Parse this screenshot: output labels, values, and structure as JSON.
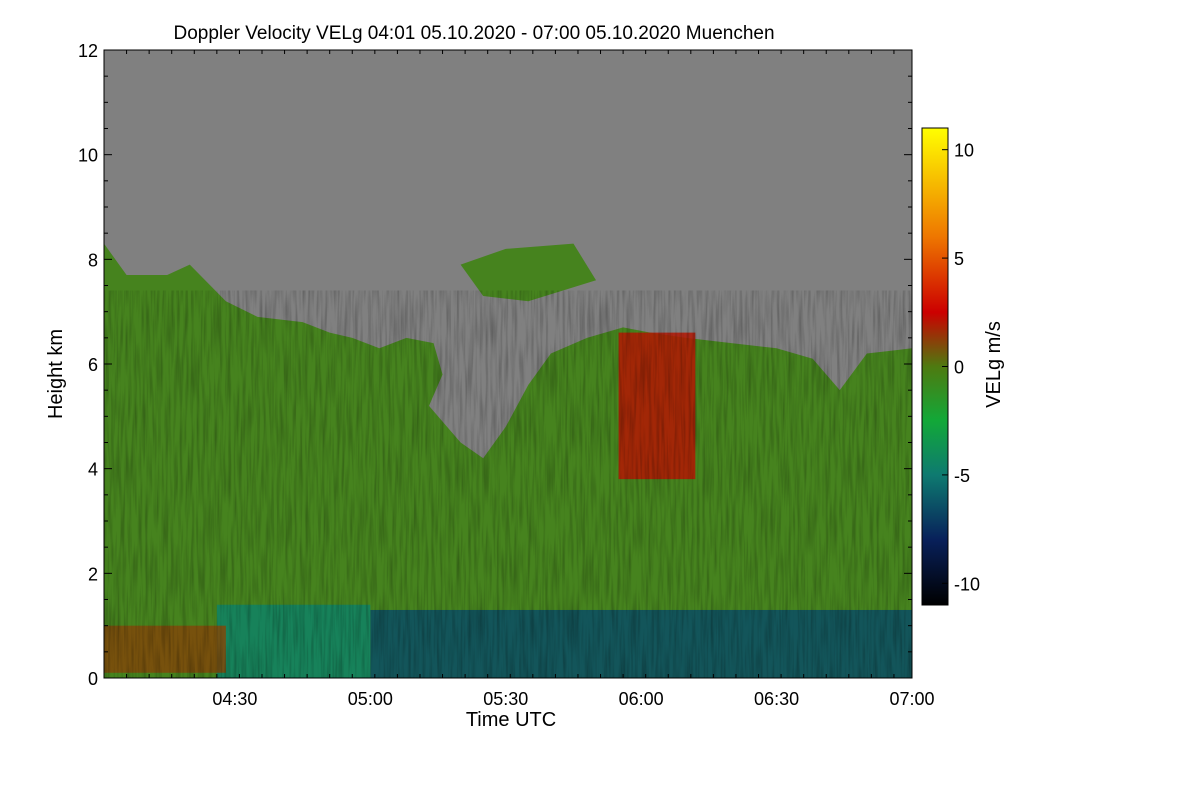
{
  "chart_data": {
    "type": "heatmap",
    "title": "Doppler Velocity VELg   04:01 05.10.2020 - 07:00 05.10.2020 Muenchen",
    "xlabel": "Time UTC",
    "ylabel": "Height km",
    "x_start_label": "04:01",
    "x_end_label": "07:00",
    "xlim_minutes_utc": [
      241,
      420
    ],
    "ylim_km": [
      0,
      12
    ],
    "x_ticks": [
      {
        "minutes": 270,
        "label": "04:30"
      },
      {
        "minutes": 300,
        "label": "05:00"
      },
      {
        "minutes": 330,
        "label": "05:30"
      },
      {
        "minutes": 360,
        "label": "06:00"
      },
      {
        "minutes": 390,
        "label": "06:30"
      },
      {
        "minutes": 420,
        "label": "07:00"
      }
    ],
    "y_ticks": [
      {
        "km": 0,
        "label": "0"
      },
      {
        "km": 2,
        "label": "2"
      },
      {
        "km": 4,
        "label": "4"
      },
      {
        "km": 6,
        "label": "6"
      },
      {
        "km": 8,
        "label": "8"
      },
      {
        "km": 10,
        "label": "10"
      },
      {
        "km": 12,
        "label": "12"
      }
    ],
    "colorbar": {
      "label": "VELg m/s",
      "range": [
        -11,
        11
      ],
      "ticks": [
        {
          "value": 10,
          "label": "10"
        },
        {
          "value": 5,
          "label": "5"
        },
        {
          "value": 0,
          "label": "0"
        },
        {
          "value": -5,
          "label": "-5"
        },
        {
          "value": -10,
          "label": "-10"
        }
      ],
      "stops": [
        {
          "value": -11,
          "color": "#000000"
        },
        {
          "value": -8,
          "color": "#08205a"
        },
        {
          "value": -5,
          "color": "#0e7a70"
        },
        {
          "value": -2.5,
          "color": "#12a838"
        },
        {
          "value": 0,
          "color": "#4e7a10"
        },
        {
          "value": 2.5,
          "color": "#cc0000"
        },
        {
          "value": 6,
          "color": "#ee7700"
        },
        {
          "value": 11,
          "color": "#ffff00"
        }
      ]
    },
    "no_data_color": "#808080",
    "regions": [
      {
        "name": "upper cloud top",
        "velocity_ms": -0.5,
        "boundary_km": [
          [
            241,
            8.3
          ],
          [
            246,
            7.7
          ],
          [
            255,
            7.7
          ],
          [
            260,
            7.9
          ],
          [
            268,
            7.2
          ],
          [
            275,
            6.9
          ],
          [
            285,
            6.8
          ],
          [
            291,
            6.6
          ],
          [
            296,
            6.5
          ],
          [
            302,
            6.3
          ],
          [
            308,
            6.5
          ],
          [
            314,
            6.4
          ],
          [
            316,
            5.8
          ],
          [
            313,
            5.2
          ],
          [
            320,
            4.5
          ],
          [
            325,
            4.2
          ],
          [
            330,
            4.8
          ],
          [
            335,
            5.6
          ],
          [
            340,
            6.2
          ],
          [
            348,
            6.5
          ],
          [
            356,
            6.7
          ],
          [
            362,
            6.6
          ],
          [
            370,
            6.5
          ],
          [
            380,
            6.4
          ],
          [
            390,
            6.3
          ],
          [
            398,
            6.1
          ],
          [
            404,
            5.5
          ],
          [
            410,
            6.2
          ],
          [
            420,
            6.3
          ]
        ]
      },
      {
        "name": "detached cloud 07:30 km",
        "velocity_ms": -0.5,
        "boundary_km": [
          [
            320,
            7.9
          ],
          [
            330,
            8.2
          ],
          [
            345,
            8.3
          ],
          [
            350,
            7.6
          ],
          [
            335,
            7.2
          ],
          [
            325,
            7.3
          ]
        ]
      },
      {
        "name": "warm streaks",
        "velocity_ms": 2.0,
        "x_min": [
          355,
          372
        ],
        "y_km": [
          3.8,
          6.6
        ]
      },
      {
        "name": "lower dense layer",
        "velocity_ms": -6.5,
        "x_min": [
          300,
          420
        ],
        "y_km": [
          0,
          1.3
        ]
      },
      {
        "name": "transition layer",
        "velocity_ms": -4.5,
        "x_min": [
          266,
          300
        ],
        "y_km": [
          0,
          1.4
        ]
      },
      {
        "name": "low clutter",
        "velocity_ms": 1.0,
        "x_min": [
          241,
          268
        ],
        "y_km": [
          0.1,
          1.0
        ]
      }
    ]
  }
}
